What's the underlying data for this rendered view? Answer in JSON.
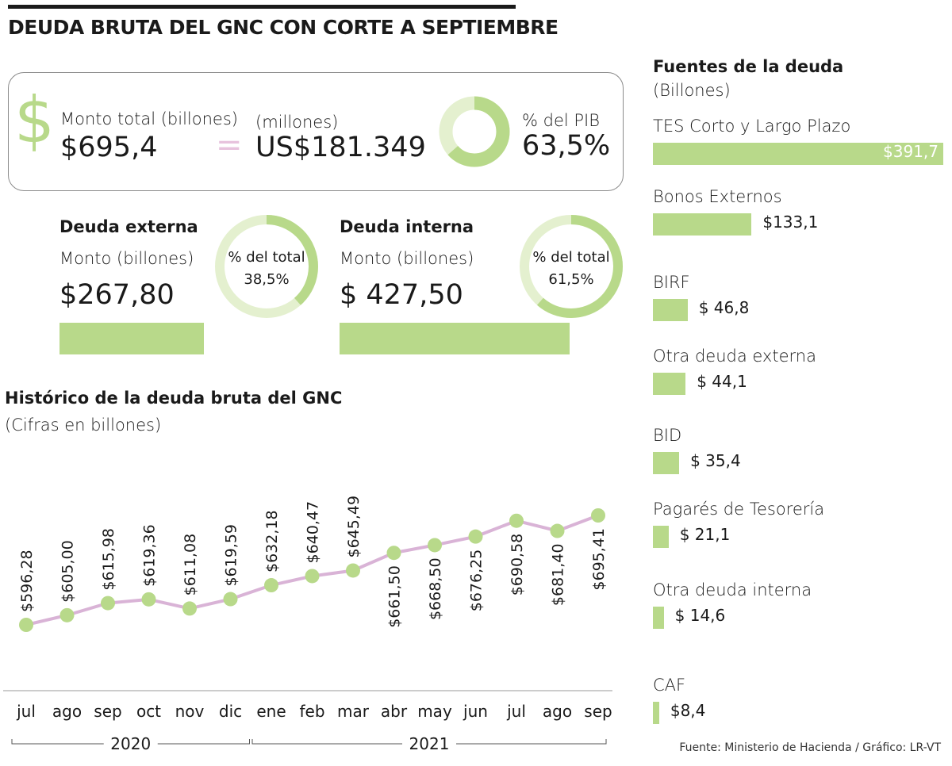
{
  "title": "DEUDA BRUTA DEL GNC CON CORTE A SEPTIEMBRE",
  "summary": {
    "total_label": "Monto total (billones)",
    "total_value": "$695,4",
    "usd_label": "(millones)",
    "usd_value": "US$181.349",
    "pib_label": "% del PIB",
    "pib_value": "63,5%",
    "pib_fraction": 0.635
  },
  "externa": {
    "title": "Deuda externa",
    "amount_label": "Monto (billones)",
    "amount": "$267,80",
    "share_label": "% del total",
    "share_value": "38,5%",
    "share_fraction": 0.385,
    "amount_number": 267.8
  },
  "interna": {
    "title": "Deuda interna",
    "amount_label": "Monto (billones)",
    "amount": "$ 427,50",
    "share_label": "% del total",
    "share_value": "61,5%",
    "share_fraction": 0.615,
    "amount_number": 427.5
  },
  "sources": {
    "title": "Fuentes de la deuda",
    "subtitle": "(Billones)",
    "items": [
      {
        "name": "TES Corto y Largo Plazo",
        "label": "$391,7",
        "value": 391.7
      },
      {
        "name": "Bonos Externos",
        "label": "$133,1",
        "value": 133.1
      },
      {
        "name": "BIRF",
        "label": "$ 46,8",
        "value": 46.8
      },
      {
        "name": "Otra deuda externa",
        "label": "$ 44,1",
        "value": 44.1
      },
      {
        "name": "BID",
        "label": "$ 35,4",
        "value": 35.4
      },
      {
        "name": "Pagarés de Tesorería",
        "label": "$ 21,1",
        "value": 21.1
      },
      {
        "name": "Otra deuda interna",
        "label": "$ 14,6",
        "value": 14.6
      },
      {
        "name": "CAF",
        "label": "$8,4",
        "value": 8.4
      }
    ]
  },
  "chart_data": {
    "type": "line",
    "title": "Histórico de la deuda bruta del GNC",
    "subtitle": "(Cifras en billones)",
    "categories": [
      "jul",
      "ago",
      "sep",
      "oct",
      "nov",
      "dic",
      "ene",
      "feb",
      "mar",
      "abr",
      "may",
      "jun",
      "jul",
      "ago",
      "sep"
    ],
    "values": [
      596.28,
      605.0,
      615.98,
      619.36,
      611.08,
      619.59,
      632.18,
      640.47,
      645.49,
      661.5,
      668.5,
      676.25,
      690.58,
      681.4,
      695.41
    ],
    "labels": [
      "$596,28",
      "$605,00",
      "$615,98",
      "$619,36",
      "$611,08",
      "$619,59",
      "$632,18",
      "$640,47",
      "$645,49",
      "$661,50",
      "$668,50",
      "$676,25",
      "$690,58",
      "$681,40",
      "$695,41"
    ],
    "label_position": [
      "above",
      "above",
      "above",
      "above",
      "above",
      "above",
      "above",
      "above",
      "above",
      "below",
      "below",
      "below",
      "below",
      "below",
      "below"
    ],
    "years": [
      "2020",
      "2021"
    ],
    "year_first_index": [
      0,
      6
    ],
    "grid": false,
    "colors": {
      "line": "#d9b3d6",
      "marker": "#b8d98a"
    }
  },
  "footer": "Fuente: Ministerio de Hacienda / Gráfico: LR-VT",
  "colors": {
    "green": "#b8d98a",
    "light_green": "#e4f0cf",
    "pink": "#e7c2dd"
  }
}
